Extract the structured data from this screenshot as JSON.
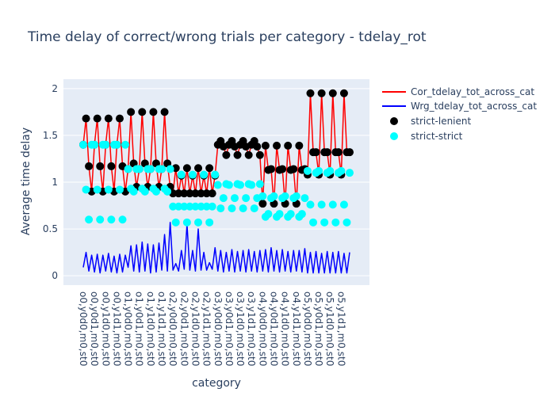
{
  "chart_data": {
    "type": "line",
    "title": "Time delay of correct/wrong trials per category - tdelay_rot",
    "xlabel": "category",
    "ylabel": "Average time delay",
    "ylim": [
      -0.1,
      2.1
    ],
    "yticks": [
      0,
      0.5,
      1,
      1.5,
      2
    ],
    "ytick_labels": [
      "0",
      "0.5",
      "1",
      "1.5",
      "2"
    ],
    "x_count": 96,
    "xtick_labels": [
      "o0,y0d0,m0,st0",
      "o0,y0d1,m0,st0",
      "o0,y1d0,m0,st0",
      "o0,y1d1,m0,st0",
      "o1,y0d0,m0,st0",
      "o1,y0d1,m0,st0",
      "o1,y1d0,m0,st0",
      "o1,y1d1,m0,st0",
      "o2,y0d0,m0,st0",
      "o2,y0d1,m0,st0",
      "o2,y1d0,m0,st0",
      "o2,y1d1,m0,st0",
      "o3,y0d0,m0,st0",
      "o3,y0d1,m0,st0",
      "o3,y1d0,m0,st0",
      "o3,y1d1,m0,st0",
      "o4,y0d0,m0,st0",
      "o4,y0d1,m0,st0",
      "o4,y1d0,m0,st0",
      "o4,y1d1,m0,st0",
      "o5,y0d0,m0,st0",
      "o5,y0d1,m0,st0",
      "o5,y1d0,m0,st0",
      "o5,y1d1,m0,st0"
    ],
    "legend": {
      "position": "top-right",
      "entries": [
        {
          "name": "Cor_tdelay_tot_across_cat",
          "kind": "line",
          "color": "#ff0000"
        },
        {
          "name": "Wrg_tdelay_tot_across_cat",
          "kind": "line",
          "color": "#0000ff"
        },
        {
          "name": "strict-lenient",
          "kind": "marker",
          "color": "#000000"
        },
        {
          "name": "strict-strict",
          "kind": "marker",
          "color": "#00ffff"
        }
      ]
    },
    "series": [
      {
        "name": "Cor_tdelay_tot_across_cat",
        "color": "#ff0000",
        "values": [
          1.4,
          1.68,
          1.17,
          0.9,
          1.4,
          1.68,
          1.17,
          0.9,
          1.4,
          1.68,
          1.17,
          0.9,
          1.4,
          1.68,
          1.17,
          0.9,
          1.14,
          1.75,
          1.2,
          0.95,
          1.14,
          1.75,
          1.2,
          0.95,
          1.14,
          1.75,
          1.2,
          0.95,
          1.14,
          1.75,
          1.2,
          0.95,
          0.88,
          1.15,
          0.88,
          1.07,
          0.88,
          1.15,
          0.88,
          1.07,
          0.88,
          1.15,
          0.88,
          1.07,
          0.88,
          1.15,
          0.88,
          1.07,
          1.4,
          1.44,
          1.38,
          1.29,
          1.4,
          1.44,
          1.38,
          1.29,
          1.4,
          1.44,
          1.38,
          1.29,
          1.4,
          1.44,
          1.38,
          1.29,
          0.77,
          1.39,
          1.13,
          1.14,
          0.77,
          1.39,
          1.13,
          1.14,
          0.77,
          1.39,
          1.13,
          1.14,
          0.77,
          1.39,
          1.13,
          1.14,
          1.08,
          1.95,
          1.32,
          1.32,
          1.08,
          1.95,
          1.32,
          1.32,
          1.08,
          1.95,
          1.32,
          1.32,
          1.08,
          1.95,
          1.32,
          1.32
        ]
      },
      {
        "name": "Wrg_tdelay_tot_across_cat",
        "color": "#0000ff",
        "values": [
          0.09,
          0.25,
          0.05,
          0.22,
          0.04,
          0.23,
          0.03,
          0.22,
          0.05,
          0.24,
          0.04,
          0.21,
          0.03,
          0.23,
          0.04,
          0.22,
          0.09,
          0.32,
          0.05,
          0.33,
          0.04,
          0.36,
          0.05,
          0.34,
          0.03,
          0.33,
          0.04,
          0.35,
          0.06,
          0.44,
          0.05,
          0.57,
          0.06,
          0.13,
          0.05,
          0.27,
          0.07,
          0.55,
          0.06,
          0.27,
          0.05,
          0.5,
          0.06,
          0.25,
          0.06,
          0.14,
          0.07,
          0.3,
          0.05,
          0.27,
          0.04,
          0.25,
          0.05,
          0.28,
          0.04,
          0.26,
          0.05,
          0.27,
          0.04,
          0.28,
          0.05,
          0.26,
          0.04,
          0.27,
          0.05,
          0.28,
          0.04,
          0.3,
          0.05,
          0.27,
          0.04,
          0.28,
          0.05,
          0.26,
          0.04,
          0.27,
          0.05,
          0.27,
          0.04,
          0.29,
          0.03,
          0.25,
          0.03,
          0.26,
          0.03,
          0.24,
          0.03,
          0.26,
          0.03,
          0.25,
          0.03,
          0.26,
          0.03,
          0.24,
          0.03,
          0.25
        ]
      },
      {
        "name": "strict-lenient",
        "color": "#000000",
        "marker": "circle",
        "values": [
          1.4,
          1.68,
          1.17,
          0.9,
          1.4,
          1.68,
          1.17,
          0.9,
          1.4,
          1.68,
          1.17,
          0.9,
          1.4,
          1.68,
          1.17,
          0.9,
          1.14,
          1.75,
          1.2,
          0.95,
          1.14,
          1.75,
          1.2,
          0.95,
          1.14,
          1.75,
          1.2,
          0.95,
          1.14,
          1.75,
          1.2,
          0.95,
          0.88,
          1.15,
          0.88,
          1.07,
          0.88,
          1.15,
          0.88,
          1.07,
          0.88,
          1.15,
          0.88,
          1.07,
          0.88,
          1.15,
          0.88,
          1.07,
          1.4,
          1.44,
          1.38,
          1.29,
          1.4,
          1.44,
          1.38,
          1.29,
          1.4,
          1.44,
          1.38,
          1.29,
          1.4,
          1.44,
          1.38,
          1.29,
          0.77,
          1.39,
          1.13,
          1.14,
          0.77,
          1.39,
          1.13,
          1.14,
          0.77,
          1.39,
          1.13,
          1.14,
          0.77,
          1.39,
          1.13,
          1.14,
          1.08,
          1.95,
          1.32,
          1.32,
          1.08,
          1.95,
          1.32,
          1.32,
          1.08,
          1.95,
          1.32,
          1.32,
          1.08,
          1.95,
          1.32,
          1.32
        ]
      },
      {
        "name": "strict-strict",
        "color": "#00ffff",
        "marker": "circle",
        "values": [
          1.4,
          0.92,
          0.6,
          1.4,
          1.4,
          0.92,
          0.6,
          1.4,
          1.4,
          0.92,
          0.6,
          1.4,
          1.4,
          0.92,
          0.6,
          1.4,
          1.14,
          0.93,
          0.9,
          1.14,
          1.14,
          0.93,
          0.9,
          1.14,
          1.14,
          0.93,
          0.9,
          1.14,
          1.14,
          0.93,
          0.9,
          1.14,
          0.74,
          0.57,
          0.74,
          1.08,
          0.74,
          0.57,
          0.74,
          1.08,
          0.74,
          0.57,
          0.74,
          1.08,
          0.74,
          0.57,
          0.74,
          1.08,
          0.97,
          0.72,
          0.83,
          0.98,
          0.97,
          0.72,
          0.83,
          0.98,
          0.97,
          0.72,
          0.83,
          0.98,
          0.97,
          0.72,
          0.83,
          0.98,
          0.85,
          0.63,
          0.66,
          0.83,
          0.85,
          0.63,
          0.66,
          0.83,
          0.85,
          0.63,
          0.66,
          0.83,
          0.85,
          0.63,
          0.66,
          0.83,
          1.12,
          0.76,
          0.57,
          1.1,
          1.12,
          0.76,
          0.57,
          1.1,
          1.12,
          0.76,
          0.57,
          1.1,
          1.12,
          0.76,
          0.57,
          1.1
        ]
      }
    ]
  }
}
